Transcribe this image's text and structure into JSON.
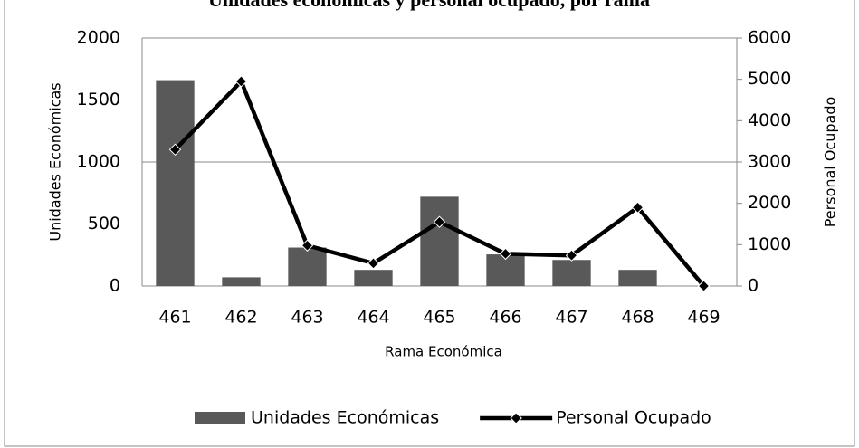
{
  "chart_data": {
    "type": "bar_line",
    "title": "Unidades económicas y personal ocupado, por rama",
    "x_label": "Rama Económica",
    "y_label": "Unidades Económicas",
    "y2_label": "Personal Ocupado",
    "categories": [
      "461",
      "462",
      "463",
      "464",
      "465",
      "466",
      "467",
      "468",
      "469"
    ],
    "series": [
      {
        "name": "Unidades Económicas",
        "type": "bar",
        "color": "#595959",
        "values": [
          1660,
          70,
          310,
          130,
          720,
          255,
          210,
          130,
          0
        ]
      },
      {
        "name": "Personal Ocupado",
        "type": "line",
        "axis": "y2",
        "color": "#000000",
        "values": [
          3300,
          4950,
          980,
          550,
          1550,
          780,
          740,
          1900,
          0
        ]
      }
    ],
    "ylim": [
      0,
      2000
    ],
    "yticks": [
      0,
      500,
      1000,
      1500,
      2000
    ],
    "y2lim": [
      0,
      6000
    ],
    "y2ticks": [
      0,
      1000,
      2000,
      3000,
      4000,
      5000,
      6000
    ],
    "grid": true,
    "legend": "bottom"
  }
}
